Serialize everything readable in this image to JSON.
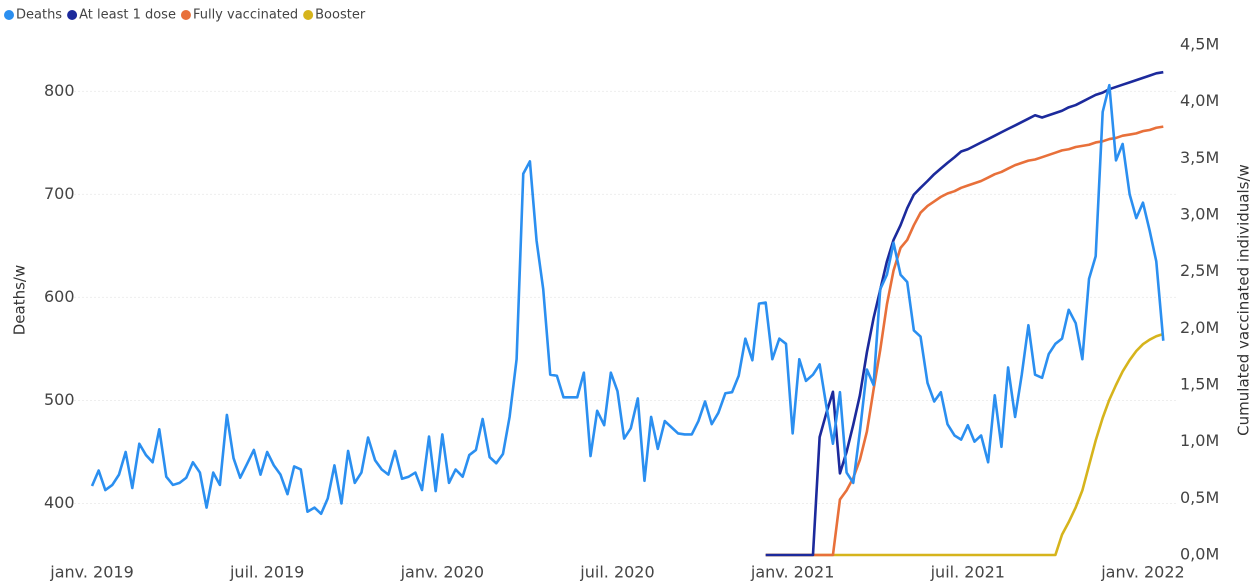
{
  "chart_data": {
    "type": "line",
    "x": [
      2019,
      2019.019,
      2019.038,
      2019.058,
      2019.077,
      2019.096,
      2019.115,
      2019.135,
      2019.154,
      2019.173,
      2019.192,
      2019.212,
      2019.231,
      2019.25,
      2019.269,
      2019.288,
      2019.308,
      2019.327,
      2019.346,
      2019.365,
      2019.385,
      2019.404,
      2019.423,
      2019.442,
      2019.462,
      2019.481,
      2019.5,
      2019.519,
      2019.538,
      2019.558,
      2019.577,
      2019.596,
      2019.615,
      2019.635,
      2019.654,
      2019.673,
      2019.692,
      2019.712,
      2019.731,
      2019.75,
      2019.769,
      2019.788,
      2019.808,
      2019.827,
      2019.846,
      2019.865,
      2019.885,
      2019.904,
      2019.923,
      2019.942,
      2019.962,
      2019.981,
      2020,
      2020.019,
      2020.038,
      2020.058,
      2020.077,
      2020.096,
      2020.115,
      2020.135,
      2020.154,
      2020.173,
      2020.192,
      2020.212,
      2020.231,
      2020.25,
      2020.269,
      2020.288,
      2020.308,
      2020.327,
      2020.346,
      2020.365,
      2020.385,
      2020.404,
      2020.423,
      2020.442,
      2020.462,
      2020.481,
      2020.5,
      2020.519,
      2020.538,
      2020.558,
      2020.577,
      2020.596,
      2020.615,
      2020.635,
      2020.654,
      2020.673,
      2020.692,
      2020.712,
      2020.731,
      2020.75,
      2020.769,
      2020.788,
      2020.808,
      2020.827,
      2020.846,
      2020.865,
      2020.885,
      2020.904,
      2020.923,
      2020.942,
      2020.962,
      2020.981,
      2021,
      2021.019,
      2021.038,
      2021.058,
      2021.077,
      2021.096,
      2021.115,
      2021.135,
      2021.154,
      2021.173,
      2021.192,
      2021.212,
      2021.231,
      2021.25,
      2021.269,
      2021.288,
      2021.308,
      2021.327,
      2021.346,
      2021.365,
      2021.385,
      2021.404,
      2021.423,
      2021.442,
      2021.462,
      2021.481,
      2021.5,
      2021.519,
      2021.538,
      2021.558,
      2021.577,
      2021.596,
      2021.615,
      2021.635,
      2021.654,
      2021.673,
      2021.692,
      2021.712,
      2021.731,
      2021.75,
      2021.769,
      2021.788,
      2021.808,
      2021.827,
      2021.846,
      2021.865,
      2021.885,
      2021.904,
      2021.923,
      2021.942,
      2021.962,
      2021.981,
      2022,
      2022.019,
      2022.038,
      2022.058
    ],
    "series": [
      {
        "name": "Deaths",
        "color": "#2b8ff0",
        "axis": "y",
        "values": [
          417,
          432,
          413,
          418,
          428,
          450,
          415,
          458,
          447,
          440,
          472,
          426,
          418,
          420,
          425,
          440,
          430,
          396,
          430,
          418,
          486,
          444,
          425,
          438,
          452,
          428,
          450,
          437,
          428,
          409,
          436,
          433,
          392,
          396,
          390,
          405,
          437,
          400,
          451,
          420,
          430,
          464,
          442,
          433,
          428,
          451,
          424,
          426,
          430,
          413,
          465,
          412,
          467,
          420,
          433,
          426,
          447,
          452,
          482,
          445,
          439,
          448,
          484,
          540,
          720,
          732,
          655,
          608,
          525,
          524,
          503,
          503,
          503,
          527,
          446,
          490,
          476,
          527,
          509,
          463,
          473,
          502,
          422,
          484,
          453,
          480,
          474,
          468,
          467,
          467,
          480,
          499,
          477,
          488,
          507,
          508,
          524,
          560,
          539,
          594,
          595,
          540,
          560,
          555,
          468,
          540,
          519,
          525,
          535,
          495,
          458,
          508,
          430,
          420,
          470,
          530,
          515,
          608,
          622,
          653,
          622,
          615,
          568,
          562,
          517,
          499,
          508,
          477,
          466,
          462,
          476,
          460,
          466,
          440,
          505,
          455,
          532,
          484,
          525,
          573,
          525,
          522,
          545,
          555,
          560,
          588,
          575,
          540,
          618,
          640,
          780,
          806,
          733,
          749,
          700,
          677,
          692,
          665,
          635,
          558
        ]
      },
      {
        "name": "At least 1 dose",
        "color": "#1c2a9c",
        "axis": "y2",
        "values": [
          null,
          null,
          null,
          null,
          null,
          null,
          null,
          null,
          null,
          null,
          null,
          null,
          null,
          null,
          null,
          null,
          null,
          null,
          null,
          null,
          null,
          null,
          null,
          null,
          null,
          null,
          null,
          null,
          null,
          null,
          null,
          null,
          null,
          null,
          null,
          null,
          null,
          null,
          null,
          null,
          null,
          null,
          null,
          null,
          null,
          null,
          null,
          null,
          null,
          null,
          null,
          null,
          null,
          null,
          null,
          null,
          null,
          null,
          null,
          null,
          null,
          null,
          null,
          null,
          null,
          null,
          null,
          null,
          null,
          null,
          null,
          null,
          null,
          null,
          null,
          null,
          null,
          null,
          null,
          null,
          null,
          null,
          null,
          null,
          null,
          null,
          null,
          null,
          null,
          null,
          null,
          null,
          null,
          null,
          null,
          null,
          null,
          null,
          null,
          null,
          0,
          0,
          0,
          0,
          0,
          0,
          0,
          0,
          1040000,
          1250000,
          1440000,
          720000,
          910000,
          1150000,
          1410000,
          1790000,
          2090000,
          2340000,
          2590000,
          2780000,
          2910000,
          3060000,
          3180000,
          3240000,
          3300000,
          3360000,
          3410000,
          3460000,
          3510000,
          3560000,
          3580000,
          3610000,
          3640000,
          3670000,
          3700000,
          3730000,
          3760000,
          3790000,
          3820000,
          3850000,
          3880000,
          3860000,
          3880000,
          3900000,
          3920000,
          3950000,
          3970000,
          4000000,
          4030000,
          4060000,
          4080000,
          4110000,
          4130000,
          4150000,
          4170000,
          4190000,
          4210000,
          4230000,
          4250000,
          4260000
        ]
      },
      {
        "name": "Fully vaccinated",
        "color": "#e8703a",
        "axis": "y2",
        "values": [
          null,
          null,
          null,
          null,
          null,
          null,
          null,
          null,
          null,
          null,
          null,
          null,
          null,
          null,
          null,
          null,
          null,
          null,
          null,
          null,
          null,
          null,
          null,
          null,
          null,
          null,
          null,
          null,
          null,
          null,
          null,
          null,
          null,
          null,
          null,
          null,
          null,
          null,
          null,
          null,
          null,
          null,
          null,
          null,
          null,
          null,
          null,
          null,
          null,
          null,
          null,
          null,
          null,
          null,
          null,
          null,
          null,
          null,
          null,
          null,
          null,
          null,
          null,
          null,
          null,
          null,
          null,
          null,
          null,
          null,
          null,
          null,
          null,
          null,
          null,
          null,
          null,
          null,
          null,
          null,
          null,
          null,
          null,
          null,
          null,
          null,
          null,
          null,
          null,
          null,
          null,
          null,
          null,
          null,
          null,
          null,
          null,
          null,
          null,
          null,
          0,
          0,
          0,
          0,
          0,
          0,
          0,
          0,
          0,
          0,
          0,
          490000,
          570000,
          680000,
          840000,
          1090000,
          1460000,
          1810000,
          2210000,
          2510000,
          2710000,
          2780000,
          2910000,
          3020000,
          3080000,
          3120000,
          3160000,
          3190000,
          3210000,
          3240000,
          3260000,
          3280000,
          3300000,
          3330000,
          3360000,
          3380000,
          3410000,
          3440000,
          3460000,
          3480000,
          3490000,
          3510000,
          3530000,
          3550000,
          3570000,
          3580000,
          3600000,
          3610000,
          3620000,
          3640000,
          3650000,
          3670000,
          3680000,
          3700000,
          3710000,
          3720000,
          3740000,
          3750000,
          3770000,
          3780000
        ]
      },
      {
        "name": "Booster",
        "color": "#d6b41c",
        "axis": "y2",
        "values": [
          null,
          null,
          null,
          null,
          null,
          null,
          null,
          null,
          null,
          null,
          null,
          null,
          null,
          null,
          null,
          null,
          null,
          null,
          null,
          null,
          null,
          null,
          null,
          null,
          null,
          null,
          null,
          null,
          null,
          null,
          null,
          null,
          null,
          null,
          null,
          null,
          null,
          null,
          null,
          null,
          null,
          null,
          null,
          null,
          null,
          null,
          null,
          null,
          null,
          null,
          null,
          null,
          null,
          null,
          null,
          null,
          null,
          null,
          null,
          null,
          null,
          null,
          null,
          null,
          null,
          null,
          null,
          null,
          null,
          null,
          null,
          null,
          null,
          null,
          null,
          null,
          null,
          null,
          null,
          null,
          null,
          null,
          null,
          null,
          null,
          null,
          null,
          null,
          null,
          null,
          null,
          null,
          null,
          null,
          null,
          null,
          null,
          null,
          null,
          null,
          0,
          0,
          0,
          0,
          0,
          0,
          0,
          0,
          0,
          0,
          0,
          0,
          0,
          0,
          0,
          0,
          0,
          0,
          0,
          0,
          0,
          0,
          0,
          0,
          0,
          0,
          0,
          0,
          0,
          0,
          0,
          0,
          0,
          0,
          0,
          0,
          0,
          0,
          0,
          0,
          0,
          0,
          0,
          0,
          180000,
          290000,
          420000,
          570000,
          790000,
          1010000,
          1210000,
          1370000,
          1500000,
          1620000,
          1720000,
          1800000,
          1860000,
          1900000,
          1930000,
          1950000
        ]
      }
    ],
    "ylabel": "Deaths/w",
    "y2label": "Cumulated vaccinated individuals/w",
    "xlim": [
      2018.95,
      2022.1
    ],
    "xticks": [
      {
        "value": 2019,
        "label": "janv. 2019"
      },
      {
        "value": 2019.5,
        "label": "juil. 2019"
      },
      {
        "value": 2020,
        "label": "janv. 2020"
      },
      {
        "value": 2020.5,
        "label": "juil. 2020"
      },
      {
        "value": 2021,
        "label": "janv. 2021"
      },
      {
        "value": 2021.5,
        "label": "juil. 2021"
      },
      {
        "value": 2022,
        "label": "janv. 2022"
      }
    ],
    "ylim": [
      350,
      845
    ],
    "yticks": [
      400,
      500,
      600,
      700,
      800
    ],
    "y2lim": [
      0,
      4500000
    ],
    "y2ticks": [
      {
        "value": 0,
        "label": "0,0M"
      },
      {
        "value": 500000,
        "label": "0,5M"
      },
      {
        "value": 1000000,
        "label": "1,0M"
      },
      {
        "value": 1500000,
        "label": "1,5M"
      },
      {
        "value": 2000000,
        "label": "2,0M"
      },
      {
        "value": 2500000,
        "label": "2,5M"
      },
      {
        "value": 3000000,
        "label": "3,0M"
      },
      {
        "value": 3500000,
        "label": "3,5M"
      },
      {
        "value": 4000000,
        "label": "4,0M"
      },
      {
        "value": 4500000,
        "label": "4,5M"
      }
    ],
    "grid": true,
    "legend": "top-left"
  }
}
